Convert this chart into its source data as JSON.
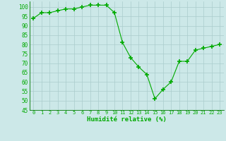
{
  "x": [
    0,
    1,
    2,
    3,
    4,
    5,
    6,
    7,
    8,
    9,
    10,
    11,
    12,
    13,
    14,
    15,
    16,
    17,
    18,
    19,
    20,
    21,
    22,
    23
  ],
  "y": [
    94,
    97,
    97,
    98,
    99,
    99,
    100,
    101,
    101,
    101,
    97,
    81,
    73,
    68,
    64,
    51,
    56,
    60,
    71,
    71,
    77,
    78,
    79,
    80
  ],
  "line_color": "#00aa00",
  "marker": "+",
  "marker_size": 4,
  "bg_color": "#cce8e8",
  "grid_color": "#aacccc",
  "xlabel": "Humidité relative (%)",
  "xlabel_color": "#00aa00",
  "tick_color": "#00aa00",
  "ylim": [
    45,
    103
  ],
  "yticks": [
    45,
    50,
    55,
    60,
    65,
    70,
    75,
    80,
    85,
    90,
    95,
    100
  ],
  "xlim": [
    -0.5,
    23.5
  ]
}
